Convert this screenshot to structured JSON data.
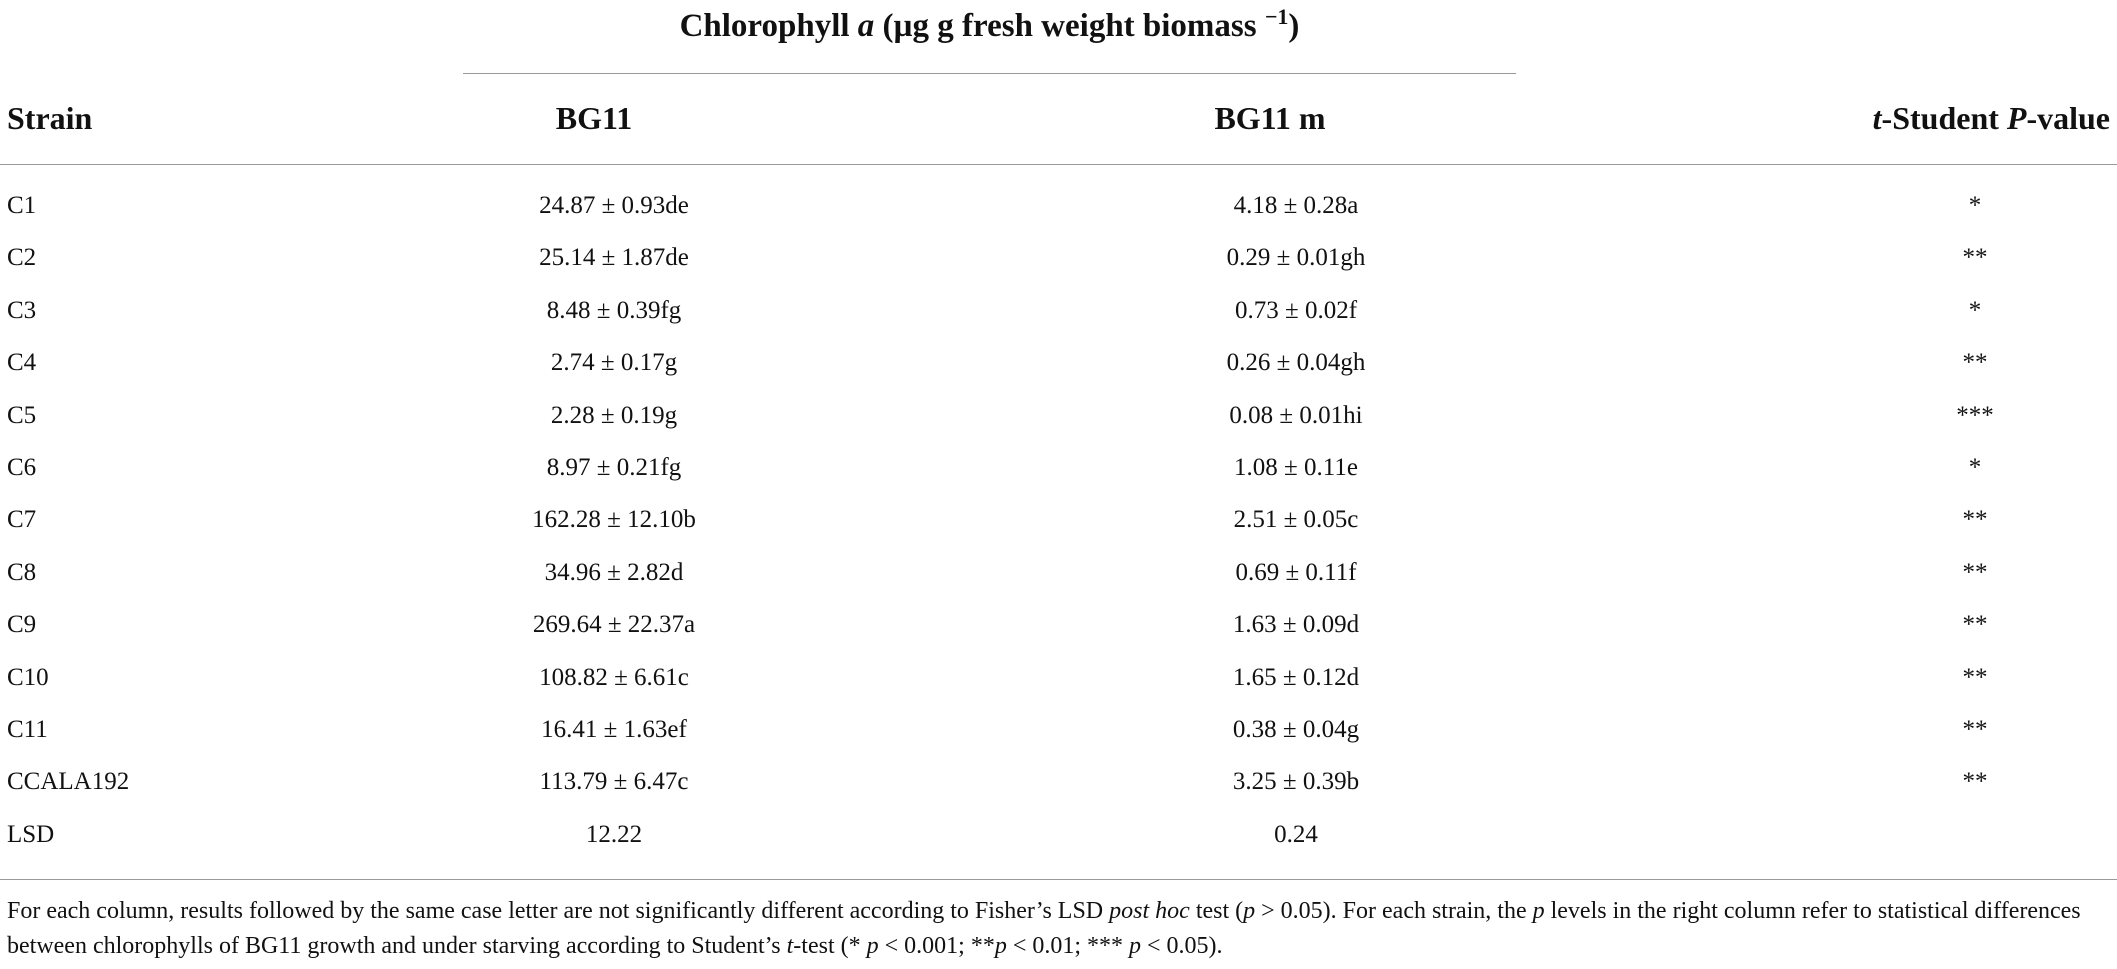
{
  "header": {
    "title": [
      "Chlorophyll ",
      "a",
      " (µg g fresh weight biomass ",
      "−1",
      ")"
    ]
  },
  "table": {
    "columns": [
      [
        "Strain"
      ],
      [
        "BG11"
      ],
      [
        "BG11 m"
      ],
      [
        "t",
        "-Student ",
        "P",
        "-value"
      ]
    ],
    "rows": [
      [
        "C1",
        "24.87 ± 0.93de",
        "4.18 ± 0.28a",
        "*"
      ],
      [
        "C2",
        "25.14 ± 1.87de",
        "0.29 ± 0.01gh",
        "**"
      ],
      [
        "C3",
        "8.48 ± 0.39fg",
        "0.73 ± 0.02f",
        "*"
      ],
      [
        "C4",
        "2.74 ± 0.17g",
        "0.26 ± 0.04gh",
        "**"
      ],
      [
        "C5",
        "2.28 ± 0.19g",
        "0.08 ± 0.01hi",
        "***"
      ],
      [
        "C6",
        "8.97 ± 0.21fg",
        "1.08 ± 0.11e",
        "*"
      ],
      [
        "C7",
        "162.28 ± 12.10b",
        "2.51 ± 0.05c",
        "**"
      ],
      [
        "C8",
        "34.96 ± 2.82d",
        "0.69 ± 0.11f",
        "**"
      ],
      [
        "C9",
        "269.64 ± 22.37a",
        "1.63 ± 0.09d",
        "**"
      ],
      [
        "C10",
        "108.82 ± 6.61c",
        "1.65 ± 0.12d",
        "**"
      ],
      [
        "C11",
        "16.41 ± 1.63ef",
        "0.38 ± 0.04g",
        "**"
      ],
      [
        "CCALA192",
        "113.79 ± 6.47c",
        "3.25 ± 0.39b",
        "**"
      ],
      [
        "LSD",
        "12.22",
        "0.24"
      ]
    ]
  },
  "footnote": [
    "For each column, results followed by the same case letter are not significantly different according to Fisher’s LSD ",
    "post hoc",
    " test (",
    "p",
    " > 0.05). For each strain, the ",
    "p",
    " levels in the right column refer to statistical differences between chlorophylls of BG11 growth and under starving according to Student’s ",
    "t",
    "-test (* ",
    "p",
    " < 0.001; **",
    "p",
    " < 0.01; *** ",
    "p",
    " < 0.05)."
  ]
}
